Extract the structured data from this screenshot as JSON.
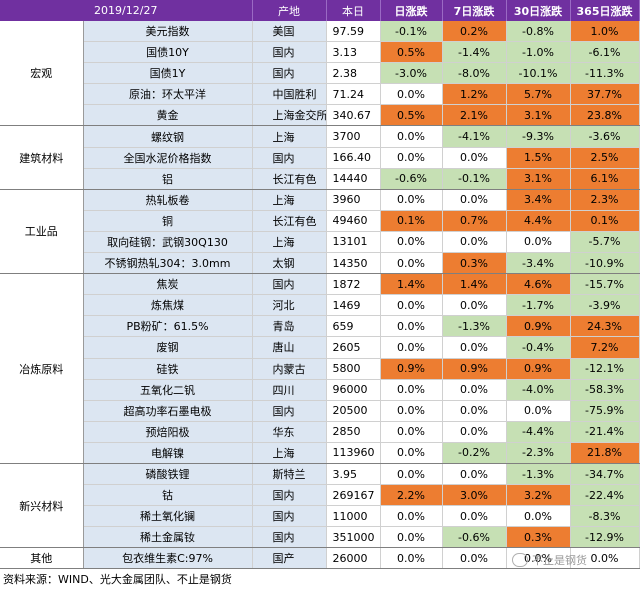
{
  "header": {
    "date": "2019/12/27",
    "origin": "产地",
    "price": "本日",
    "d1": "日涨跌",
    "d7": "7日涨跌",
    "d30": "30日涨跌",
    "d365": "365日涨跌"
  },
  "groups": [
    {
      "name": "宏观",
      "rows": [
        {
          "name": "美元指数",
          "origin": "美国",
          "price": "97.59",
          "d1": "-0.1%",
          "d7": "0.2%",
          "d30": "-0.8%",
          "d365": "1.0%"
        },
        {
          "name": "国债10Y",
          "origin": "国内",
          "price": "3.13",
          "d1": "0.5%",
          "d7": "-1.4%",
          "d30": "-1.0%",
          "d365": "-6.1%"
        },
        {
          "name": "国债1Y",
          "origin": "国内",
          "price": "2.38",
          "d1": "-3.0%",
          "d7": "-8.0%",
          "d30": "-10.1%",
          "d365": "-11.3%"
        },
        {
          "name": "原油：环太平洋",
          "origin": "中国胜利",
          "price": "71.24",
          "d1": "0.0%",
          "d7": "1.2%",
          "d30": "5.7%",
          "d365": "37.7%"
        },
        {
          "name": "黄金",
          "origin": "上海金交所",
          "price": "340.67",
          "d1": "0.5%",
          "d7": "2.1%",
          "d30": "3.1%",
          "d365": "23.8%"
        }
      ]
    },
    {
      "name": "建筑材料",
      "rows": [
        {
          "name": "螺纹钢",
          "origin": "上海",
          "price": "3700",
          "d1": "0.0%",
          "d7": "-4.1%",
          "d30": "-9.3%",
          "d365": "-3.6%"
        },
        {
          "name": "全国水泥价格指数",
          "origin": "国内",
          "price": "166.40",
          "d1": "0.0%",
          "d7": "0.0%",
          "d30": "1.5%",
          "d365": "2.5%"
        },
        {
          "name": "铝",
          "origin": "长江有色",
          "price": "14440",
          "d1": "-0.6%",
          "d7": "-0.1%",
          "d30": "3.1%",
          "d365": "6.1%"
        }
      ]
    },
    {
      "name": "工业品",
      "rows": [
        {
          "name": "热轧板卷",
          "origin": "上海",
          "price": "3960",
          "d1": "0.0%",
          "d7": "0.0%",
          "d30": "3.4%",
          "d365": "2.3%"
        },
        {
          "name": "铜",
          "origin": "长江有色",
          "price": "49460",
          "d1": "0.1%",
          "d7": "0.7%",
          "d30": "4.4%",
          "d365": "0.1%"
        },
        {
          "name": "取向硅钢：武钢30Q130",
          "origin": "上海",
          "price": "13101",
          "d1": "0.0%",
          "d7": "0.0%",
          "d30": "0.0%",
          "d365": "-5.7%"
        },
        {
          "name": "不锈钢热轧304：3.0mm",
          "origin": "太钢",
          "price": "14350",
          "d1": "0.0%",
          "d7": "0.3%",
          "d30": "-3.4%",
          "d365": "-10.9%"
        }
      ]
    },
    {
      "name": "冶炼原料",
      "rows": [
        {
          "name": "焦炭",
          "origin": "国内",
          "price": "1872",
          "d1": "1.4%",
          "d7": "1.4%",
          "d30": "4.6%",
          "d365": "-15.7%"
        },
        {
          "name": "炼焦煤",
          "origin": "河北",
          "price": "1469",
          "d1": "0.0%",
          "d7": "0.0%",
          "d30": "-1.7%",
          "d365": "-3.9%"
        },
        {
          "name": "PB粉矿：61.5%",
          "origin": "青岛",
          "price": "659",
          "d1": "0.0%",
          "d7": "-1.3%",
          "d30": "0.9%",
          "d365": "24.3%"
        },
        {
          "name": "废钢",
          "origin": "唐山",
          "price": "2605",
          "d1": "0.0%",
          "d7": "0.0%",
          "d30": "-0.4%",
          "d365": "7.2%"
        },
        {
          "name": "硅铁",
          "origin": "内蒙古",
          "price": "5800",
          "d1": "0.9%",
          "d7": "0.9%",
          "d30": "0.9%",
          "d365": "-12.1%"
        },
        {
          "name": "五氧化二钒",
          "origin": "四川",
          "price": "96000",
          "d1": "0.0%",
          "d7": "0.0%",
          "d30": "-4.0%",
          "d365": "-58.3%"
        },
        {
          "name": "超高功率石墨电极",
          "origin": "国内",
          "price": "20500",
          "d1": "0.0%",
          "d7": "0.0%",
          "d30": "0.0%",
          "d365": "-75.9%"
        },
        {
          "name": "预焙阳极",
          "origin": "华东",
          "price": "2850",
          "d1": "0.0%",
          "d7": "0.0%",
          "d30": "-4.4%",
          "d365": "-21.4%"
        },
        {
          "name": "电解镍",
          "origin": "上海",
          "price": "113960",
          "d1": "0.0%",
          "d7": "-0.2%",
          "d30": "-2.3%",
          "d365": "21.8%"
        }
      ]
    },
    {
      "name": "新兴材料",
      "rows": [
        {
          "name": "磷酸铁锂",
          "origin": "斯特兰",
          "price": "3.95",
          "d1": "0.0%",
          "d7": "0.0%",
          "d30": "-1.3%",
          "d365": "-34.7%"
        },
        {
          "name": "钴",
          "origin": "国内",
          "price": "269167",
          "d1": "2.2%",
          "d7": "3.0%",
          "d30": "3.2%",
          "d365": "-22.4%"
        },
        {
          "name": "稀土氧化镧",
          "origin": "国内",
          "price": "11000",
          "d1": "0.0%",
          "d7": "0.0%",
          "d30": "0.0%",
          "d365": "-8.3%"
        },
        {
          "name": "稀土金属钕",
          "origin": "国内",
          "price": "351000",
          "d1": "0.0%",
          "d7": "-0.6%",
          "d30": "0.3%",
          "d365": "-12.9%"
        }
      ]
    },
    {
      "name": "其他",
      "rows": [
        {
          "name": "包衣维生素C:97%",
          "origin": "国产",
          "price": "26000",
          "d1": "0.0%",
          "d7": "0.0%",
          "d30": "0.0%",
          "d365": "0.0%"
        }
      ]
    }
  ],
  "footer": {
    "source": "资料来源：WIND、光大金属团队、不止是钢货",
    "watermark": "不止是钢货"
  },
  "colors": {
    "header_bg": "#7030a0",
    "up": "#ed7d31",
    "down": "#c6e0b4",
    "name_bg": "#dce6f2"
  }
}
